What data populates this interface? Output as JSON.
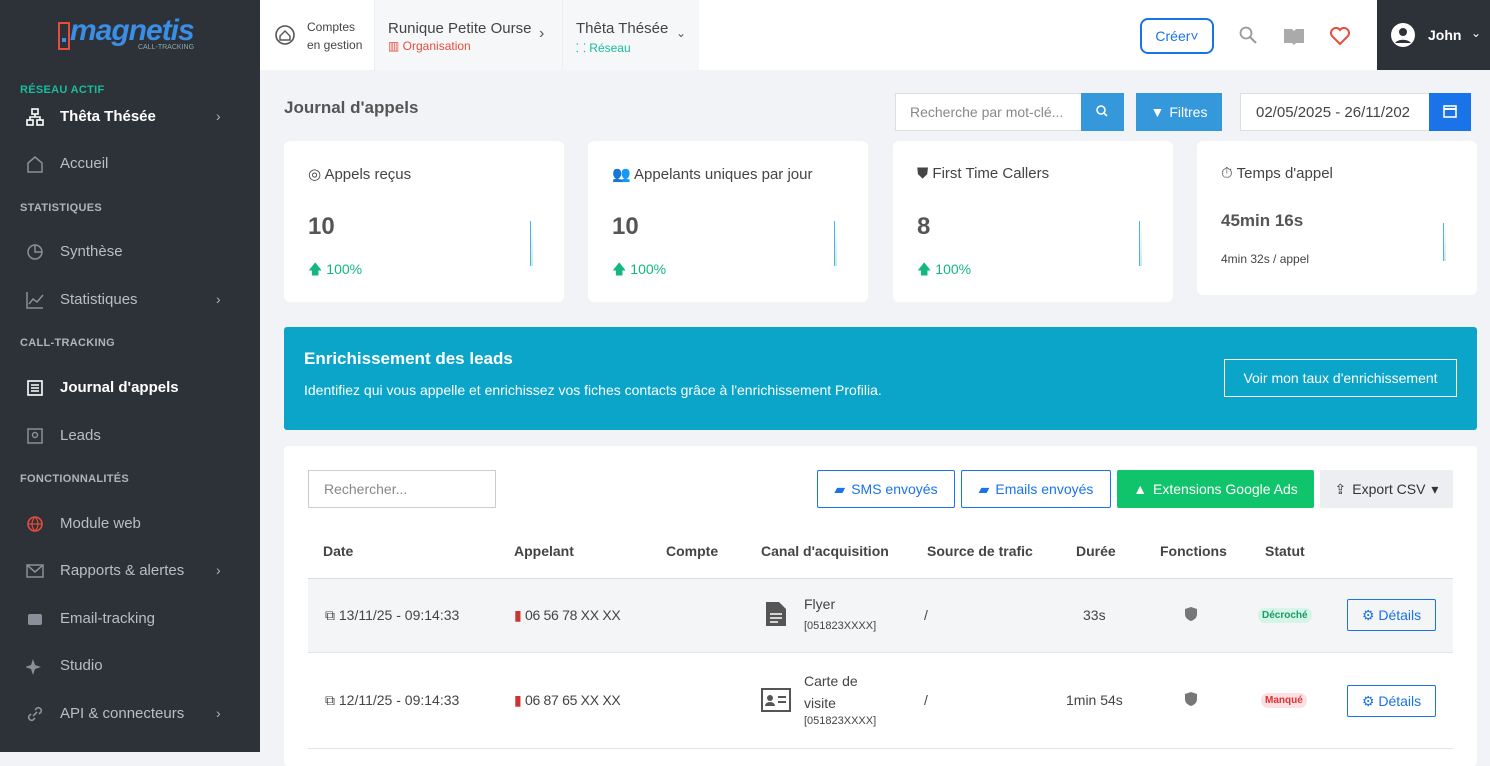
{
  "sidebar": {
    "logo": "magnetis",
    "logo_sub": "CALL-TRACKING",
    "network_label": "RÉSEAU ACTIF",
    "network": "Thêta Thésée",
    "home": "Accueil",
    "groups": [
      {
        "title": "STATISTIQUES",
        "items": [
          "Synthèse",
          "Statistiques"
        ]
      },
      {
        "title": "CALL-TRACKING",
        "items": [
          "Journal d'appels",
          "Leads"
        ]
      },
      {
        "title": "FONCTIONNALITÉS",
        "items": [
          "Module web",
          "Rapports & alertes",
          "Email-tracking",
          "Studio",
          "API & connecteurs"
        ]
      }
    ]
  },
  "topbar": {
    "accounts_line1": "Comptes",
    "accounts_line2": "en gestion",
    "org_name": "Runique Petite Ourse",
    "org_type": "Organisation",
    "network_name": "Thêta Thésée",
    "network_type": "Réseau",
    "create": "Créer",
    "user": "John"
  },
  "header": {
    "title": "Journal d'appels",
    "search_placeholder": "Recherche par mot-clé...",
    "filters": "Filtres",
    "date_range": "02/05/2025 - 26/11/202"
  },
  "kpis": [
    {
      "title": "Appels reçus",
      "value": "10",
      "change": "100%"
    },
    {
      "title": "Appelants uniques par jour",
      "value": "10",
      "change": "100%"
    },
    {
      "title": "First Time Callers",
      "value": "8",
      "change": "100%"
    },
    {
      "title": "Temps d'appel",
      "value": "45min 16s",
      "change": "4min 32s / appel"
    }
  ],
  "banner": {
    "title": "Enrichissement des leads",
    "text": "Identifiez qui vous appelle et enrichissez vos fiches contacts grâce à l'enrichissement Profilia.",
    "button": "Voir mon taux d'enrichissement"
  },
  "table": {
    "search_placeholder": "Rechercher...",
    "buttons": [
      "SMS envoyés",
      "Emails envoyés",
      "Extensions Google Ads",
      "Export CSV"
    ],
    "columns": [
      "Date",
      "Appelant",
      "Compte",
      "Canal d'acquisition",
      "Source de trafic",
      "Durée",
      "Fonctions",
      "Statut"
    ],
    "rows": [
      {
        "date": "13/11/25 - 09:14:33",
        "caller": "06 56 78 XX XX",
        "channel": "Flyer",
        "channel_id": "[051823XXXX]",
        "source": "/",
        "duration": "33s",
        "status": "Décroché",
        "action": "Détails"
      },
      {
        "date": "12/11/25 - 09:14:33",
        "caller": "06 87 65 XX XX",
        "channel": "Carte de visite",
        "channel_id": "[051823XXXX]",
        "source": "/",
        "duration": "1min 54s",
        "status": "Manqué",
        "action": "Détails"
      }
    ]
  }
}
